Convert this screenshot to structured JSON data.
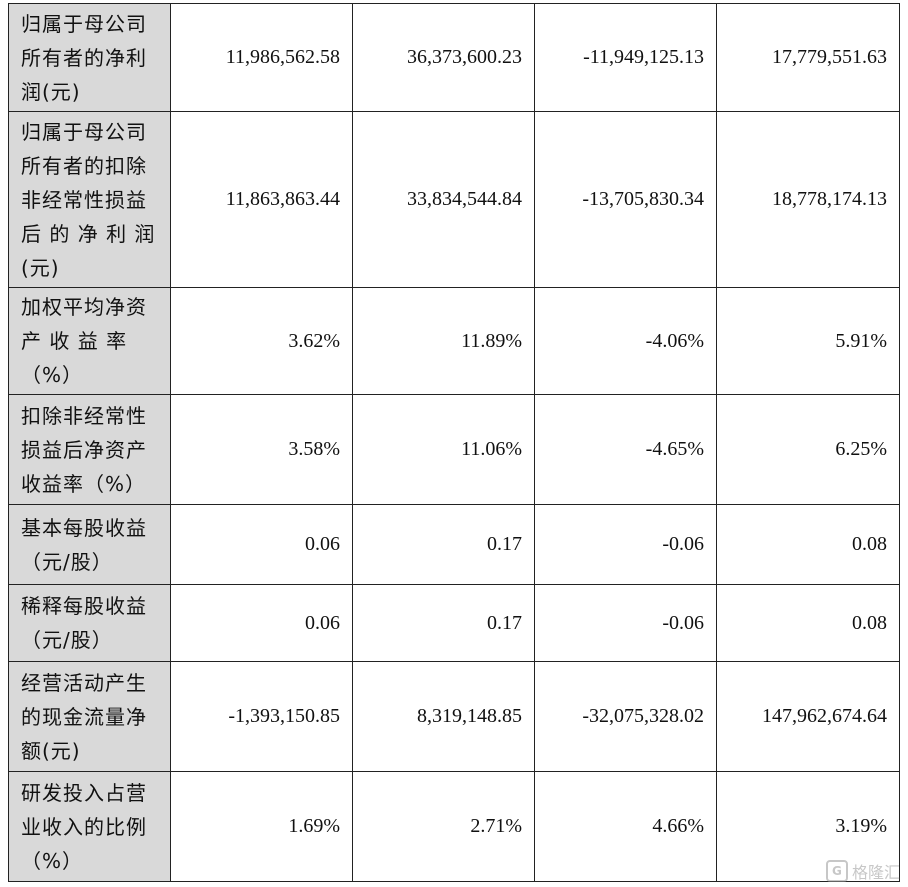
{
  "table": {
    "rows": [
      {
        "label_lines": [
          "归属于母公司",
          "所有者的净利",
          "润(元)"
        ],
        "values": [
          "11,986,562.58",
          "36,373,600.23",
          "-11,949,125.13",
          "17,779,551.63"
        ]
      },
      {
        "label_lines": [
          "归属于母公司",
          "所有者的扣除",
          "非经常性损益",
          "后 的 净 利 润",
          "(元)"
        ],
        "values": [
          "11,863,863.44",
          "33,834,544.84",
          "-13,705,830.34",
          "18,778,174.13"
        ]
      },
      {
        "label_lines": [
          "加权平均净资",
          "产  收  益  率",
          "（%）"
        ],
        "values": [
          "3.62%",
          "11.89%",
          "-4.06%",
          "5.91%"
        ]
      },
      {
        "label_lines": [
          "扣除非经常性",
          "损益后净资产",
          "收益率（%）"
        ],
        "values": [
          "3.58%",
          "11.06%",
          "-4.65%",
          "6.25%"
        ]
      },
      {
        "label_lines": [
          "基本每股收益",
          "（元/股）"
        ],
        "values": [
          "0.06",
          "0.17",
          "-0.06",
          "0.08"
        ]
      },
      {
        "label_lines": [
          "稀释每股收益",
          "（元/股）"
        ],
        "values": [
          "0.06",
          "0.17",
          "-0.06",
          "0.08"
        ]
      },
      {
        "label_lines": [
          "经营活动产生",
          "的现金流量净",
          "额(元)"
        ],
        "values": [
          "-1,393,150.85",
          "8,319,148.85",
          "-32,075,328.02",
          "147,962,674.64"
        ]
      },
      {
        "label_lines": [
          "研发投入占营",
          "业收入的比例",
          "（%）"
        ],
        "values": [
          "1.69%",
          "2.71%",
          "4.66%",
          "3.19%"
        ]
      }
    ]
  },
  "watermark": {
    "icon": "gelonghui-logo-icon",
    "text": "格隆汇"
  }
}
